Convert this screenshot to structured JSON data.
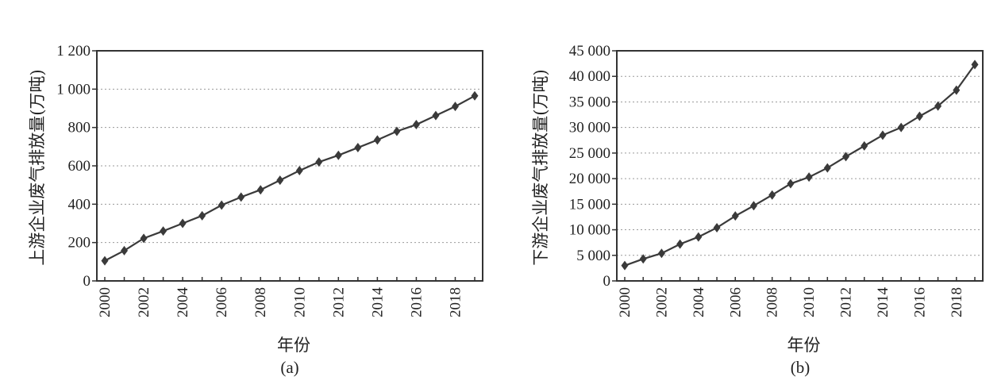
{
  "chart_data": [
    {
      "type": "line",
      "panel_label": "(a)",
      "xlabel": "年份",
      "ylabel": "上游企业废气排放量(万吨)",
      "xlim": [
        2000,
        2019
      ],
      "ylim": [
        0,
        1200
      ],
      "x_ticks": [
        "2000",
        "2002",
        "2004",
        "2006",
        "2008",
        "2010",
        "2012",
        "2014",
        "2016",
        "2018"
      ],
      "y_ticks": [
        "0",
        "200",
        "400",
        "600",
        "800",
        "1 000",
        "1 200"
      ],
      "grid": true,
      "x": [
        2000,
        2001,
        2002,
        2003,
        2004,
        2005,
        2006,
        2007,
        2008,
        2009,
        2010,
        2011,
        2012,
        2013,
        2014,
        2015,
        2016,
        2017,
        2018,
        2019
      ],
      "values": [
        105,
        158,
        222,
        260,
        300,
        340,
        395,
        437,
        475,
        525,
        575,
        620,
        655,
        695,
        735,
        780,
        815,
        862,
        910,
        965
      ]
    },
    {
      "type": "line",
      "panel_label": "(b)",
      "xlabel": "年份",
      "ylabel": "下游企业废气排放量(万吨)",
      "xlim": [
        2000,
        2019
      ],
      "ylim": [
        0,
        45000
      ],
      "x_ticks": [
        "2000",
        "2002",
        "2004",
        "2006",
        "2008",
        "2010",
        "2012",
        "2014",
        "2016",
        "2018"
      ],
      "y_ticks": [
        "0",
        "5 000",
        "10 000",
        "15 000",
        "20 000",
        "25 000",
        "30 000",
        "35 000",
        "40 000",
        "45 000"
      ],
      "grid": true,
      "x": [
        2000,
        2001,
        2002,
        2003,
        2004,
        2005,
        2006,
        2007,
        2008,
        2009,
        2010,
        2011,
        2012,
        2013,
        2014,
        2015,
        2016,
        2017,
        2018,
        2019
      ],
      "values": [
        3000,
        4300,
        5400,
        7200,
        8600,
        10400,
        12700,
        14700,
        16800,
        19000,
        20300,
        22100,
        24300,
        26400,
        28500,
        30000,
        32200,
        34200,
        37300,
        42300
      ]
    }
  ]
}
